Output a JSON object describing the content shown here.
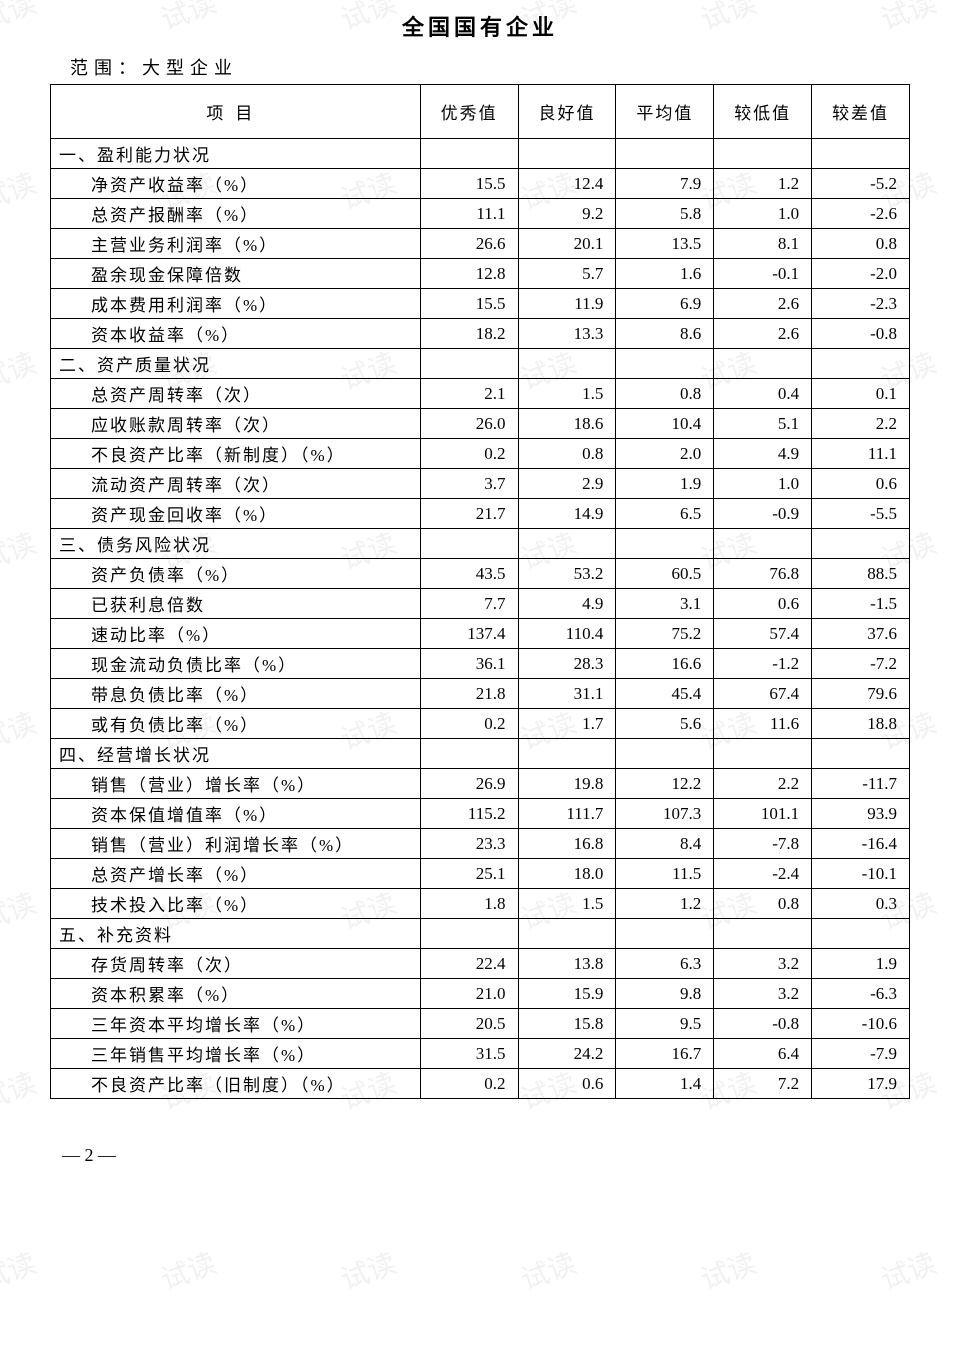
{
  "title": "全国国有企业",
  "scope": "范围：大型企业",
  "pageNumber": "— 2 —",
  "watermark": "试读",
  "headers": {
    "item": "项目",
    "v1": "优秀值",
    "v2": "良好值",
    "v3": "平均值",
    "v4": "较低值",
    "v5": "较差值"
  },
  "sections": [
    {
      "label": "一、盈利能力状况",
      "rows": [
        {
          "name": "净资产收益率（%）",
          "v": [
            "15.5",
            "12.4",
            "7.9",
            "1.2",
            "-5.2"
          ]
        },
        {
          "name": "总资产报酬率（%）",
          "v": [
            "11.1",
            "9.2",
            "5.8",
            "1.0",
            "-2.6"
          ]
        },
        {
          "name": "主营业务利润率（%）",
          "v": [
            "26.6",
            "20.1",
            "13.5",
            "8.1",
            "0.8"
          ]
        },
        {
          "name": "盈余现金保障倍数",
          "v": [
            "12.8",
            "5.7",
            "1.6",
            "-0.1",
            "-2.0"
          ]
        },
        {
          "name": "成本费用利润率（%）",
          "v": [
            "15.5",
            "11.9",
            "6.9",
            "2.6",
            "-2.3"
          ]
        },
        {
          "name": "资本收益率（%）",
          "v": [
            "18.2",
            "13.3",
            "8.6",
            "2.6",
            "-0.8"
          ]
        }
      ]
    },
    {
      "label": "二、资产质量状况",
      "rows": [
        {
          "name": "总资产周转率（次）",
          "v": [
            "2.1",
            "1.5",
            "0.8",
            "0.4",
            "0.1"
          ]
        },
        {
          "name": "应收账款周转率（次）",
          "v": [
            "26.0",
            "18.6",
            "10.4",
            "5.1",
            "2.2"
          ]
        },
        {
          "name": "不良资产比率（新制度）（%）",
          "v": [
            "0.2",
            "0.8",
            "2.0",
            "4.9",
            "11.1"
          ]
        },
        {
          "name": "流动资产周转率（次）",
          "v": [
            "3.7",
            "2.9",
            "1.9",
            "1.0",
            "0.6"
          ]
        },
        {
          "name": "资产现金回收率（%）",
          "v": [
            "21.7",
            "14.9",
            "6.5",
            "-0.9",
            "-5.5"
          ]
        }
      ]
    },
    {
      "label": "三、债务风险状况",
      "rows": [
        {
          "name": "资产负债率（%）",
          "v": [
            "43.5",
            "53.2",
            "60.5",
            "76.8",
            "88.5"
          ]
        },
        {
          "name": "已获利息倍数",
          "v": [
            "7.7",
            "4.9",
            "3.1",
            "0.6",
            "-1.5"
          ]
        },
        {
          "name": "速动比率（%）",
          "v": [
            "137.4",
            "110.4",
            "75.2",
            "57.4",
            "37.6"
          ]
        },
        {
          "name": "现金流动负债比率（%）",
          "v": [
            "36.1",
            "28.3",
            "16.6",
            "-1.2",
            "-7.2"
          ]
        },
        {
          "name": "带息负债比率（%）",
          "v": [
            "21.8",
            "31.1",
            "45.4",
            "67.4",
            "79.6"
          ]
        },
        {
          "name": "或有负债比率（%）",
          "v": [
            "0.2",
            "1.7",
            "5.6",
            "11.6",
            "18.8"
          ]
        }
      ]
    },
    {
      "label": "四、经营增长状况",
      "rows": [
        {
          "name": "销售（营业）增长率（%）",
          "v": [
            "26.9",
            "19.8",
            "12.2",
            "2.2",
            "-11.7"
          ]
        },
        {
          "name": "资本保值增值率（%）",
          "v": [
            "115.2",
            "111.7",
            "107.3",
            "101.1",
            "93.9"
          ]
        },
        {
          "name": "销售（营业）利润增长率（%）",
          "v": [
            "23.3",
            "16.8",
            "8.4",
            "-7.8",
            "-16.4"
          ]
        },
        {
          "name": "总资产增长率（%）",
          "v": [
            "25.1",
            "18.0",
            "11.5",
            "-2.4",
            "-10.1"
          ]
        },
        {
          "name": "技术投入比率（%）",
          "v": [
            "1.8",
            "1.5",
            "1.2",
            "0.8",
            "0.3"
          ]
        }
      ]
    },
    {
      "label": "五、补充资料",
      "rows": [
        {
          "name": "存货周转率（次）",
          "v": [
            "22.4",
            "13.8",
            "6.3",
            "3.2",
            "1.9"
          ]
        },
        {
          "name": "资本积累率（%）",
          "v": [
            "21.0",
            "15.9",
            "9.8",
            "3.2",
            "-6.3"
          ]
        },
        {
          "name": "三年资本平均增长率（%）",
          "v": [
            "20.5",
            "15.8",
            "9.5",
            "-0.8",
            "-10.6"
          ]
        },
        {
          "name": "三年销售平均增长率（%）",
          "v": [
            "31.5",
            "24.2",
            "16.7",
            "6.4",
            "-7.9"
          ]
        },
        {
          "name": "不良资产比率（旧制度）（%）",
          "v": [
            "0.2",
            "0.6",
            "1.4",
            "7.2",
            "17.9"
          ]
        }
      ]
    }
  ]
}
